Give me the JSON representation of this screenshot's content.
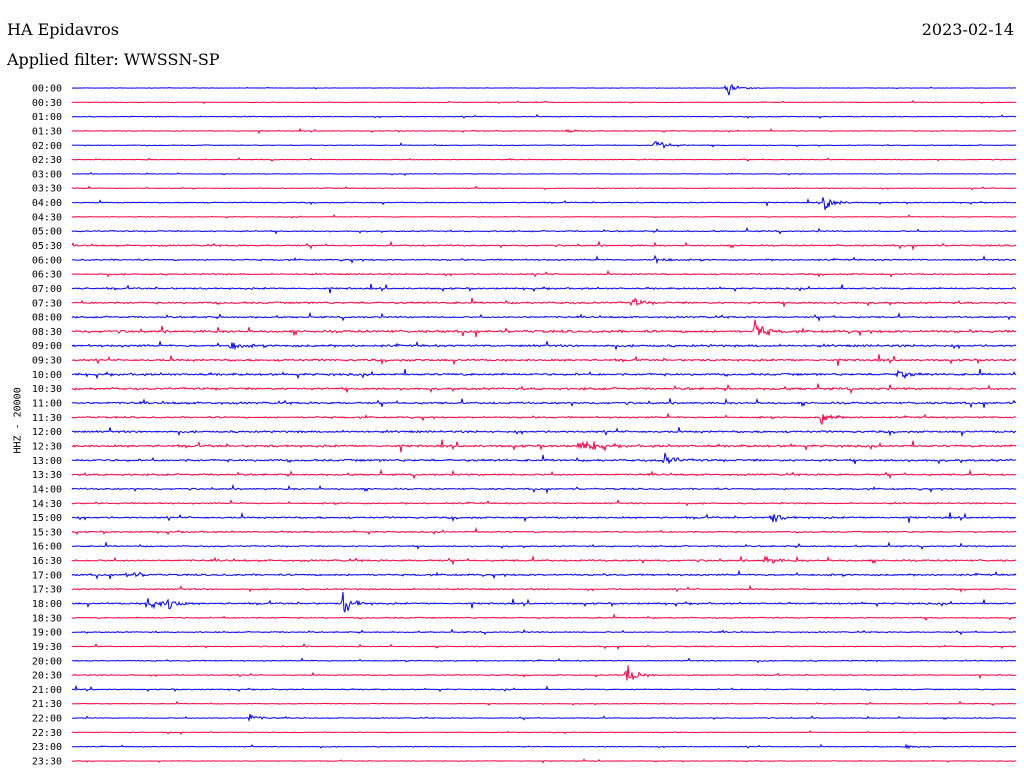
{
  "header": {
    "station": "HA Epidavros",
    "date": "2023-02-14",
    "filter": "Applied filter: WWSSN-SP"
  },
  "chart_data": {
    "type": "line",
    "title": "HA Epidavros",
    "ylabel": "HHZ - 20000",
    "xlim_minutes": [
      0,
      30
    ],
    "colors": [
      "#0000ff",
      "#ff0040"
    ],
    "tick_labels": [
      "00:00",
      "00:30",
      "01:00",
      "01:30",
      "02:00",
      "02:30",
      "03:00",
      "03:30",
      "04:00",
      "04:30",
      "05:00",
      "05:30",
      "06:00",
      "06:30",
      "07:00",
      "07:30",
      "08:00",
      "08:30",
      "09:00",
      "09:30",
      "10:00",
      "10:30",
      "11:00",
      "11:30",
      "12:00",
      "12:30",
      "13:00",
      "13:30",
      "14:00",
      "14:30",
      "15:00",
      "15:30",
      "16:00",
      "16:30",
      "17:00",
      "17:30",
      "18:00",
      "18:30",
      "19:00",
      "19:30",
      "20:00",
      "20:30",
      "21:00",
      "21:30",
      "22:00",
      "22:30",
      "23:00",
      "23:30"
    ],
    "noise_level": [
      0.3,
      0.5,
      0.6,
      0.5,
      0.6,
      0.5,
      0.4,
      0.6,
      0.7,
      0.5,
      0.9,
      1.1,
      1.1,
      1.0,
      1.2,
      1.4,
      1.2,
      1.8,
      1.6,
      1.5,
      1.6,
      1.6,
      1.5,
      1.2,
      1.5,
      1.6,
      1.6,
      1.3,
      1.1,
      1.0,
      1.3,
      1.0,
      1.0,
      1.3,
      1.3,
      1.0,
      1.2,
      0.9,
      0.8,
      0.7,
      0.8,
      0.7,
      0.8,
      0.6,
      0.6,
      0.5,
      0.6,
      0.4
    ],
    "events": [
      {
        "trace": "00:00",
        "minute": 20.8,
        "amplitude": 12
      },
      {
        "trace": "01:30",
        "minute": 15.7,
        "amplitude": 2
      },
      {
        "trace": "02:00",
        "minute": 18.5,
        "amplitude": 12
      },
      {
        "trace": "04:00",
        "minute": 23.9,
        "amplitude": 12
      },
      {
        "trace": "06:00",
        "minute": 18.5,
        "amplitude": 5
      },
      {
        "trace": "07:30",
        "minute": 17.8,
        "amplitude": 5
      },
      {
        "trace": "08:30",
        "minute": 21.7,
        "amplitude": 14
      },
      {
        "trace": "09:00",
        "minute": 5.0,
        "amplitude": 6
      },
      {
        "trace": "10:00",
        "minute": 26.2,
        "amplitude": 7
      },
      {
        "trace": "11:30",
        "minute": 23.8,
        "amplitude": 8
      },
      {
        "trace": "12:30",
        "minute": 16.1,
        "amplitude": 7
      },
      {
        "trace": "12:30",
        "minute": 16.5,
        "amplitude": 6
      },
      {
        "trace": "13:00",
        "minute": 18.8,
        "amplitude": 9
      },
      {
        "trace": "15:00",
        "minute": 22.2,
        "amplitude": 6
      },
      {
        "trace": "16:30",
        "minute": 22.0,
        "amplitude": 6
      },
      {
        "trace": "17:00",
        "minute": 1.7,
        "amplitude": 5
      },
      {
        "trace": "18:00",
        "minute": 2.4,
        "amplitude": 10
      },
      {
        "trace": "18:00",
        "minute": 3.0,
        "amplitude": 10
      },
      {
        "trace": "18:00",
        "minute": 8.6,
        "amplitude": 14
      },
      {
        "trace": "20:30",
        "minute": 17.6,
        "amplitude": 14
      },
      {
        "trace": "22:00",
        "minute": 5.6,
        "amplitude": 5
      },
      {
        "trace": "23:00",
        "minute": 26.5,
        "amplitude": 3
      }
    ]
  }
}
